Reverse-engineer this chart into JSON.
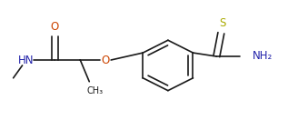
{
  "background_color": "#ffffff",
  "line_color": "#1a1a1a",
  "atom_colors": {
    "O": "#cc4400",
    "N": "#2222aa",
    "S": "#aaaa00",
    "C": "#1a1a1a"
  },
  "line_width": 1.2,
  "font_size": 8.5,
  "figsize": [
    3.17,
    1.32
  ],
  "dpi": 100,
  "xlim": [
    0,
    317
  ],
  "ylim": [
    0,
    132
  ]
}
